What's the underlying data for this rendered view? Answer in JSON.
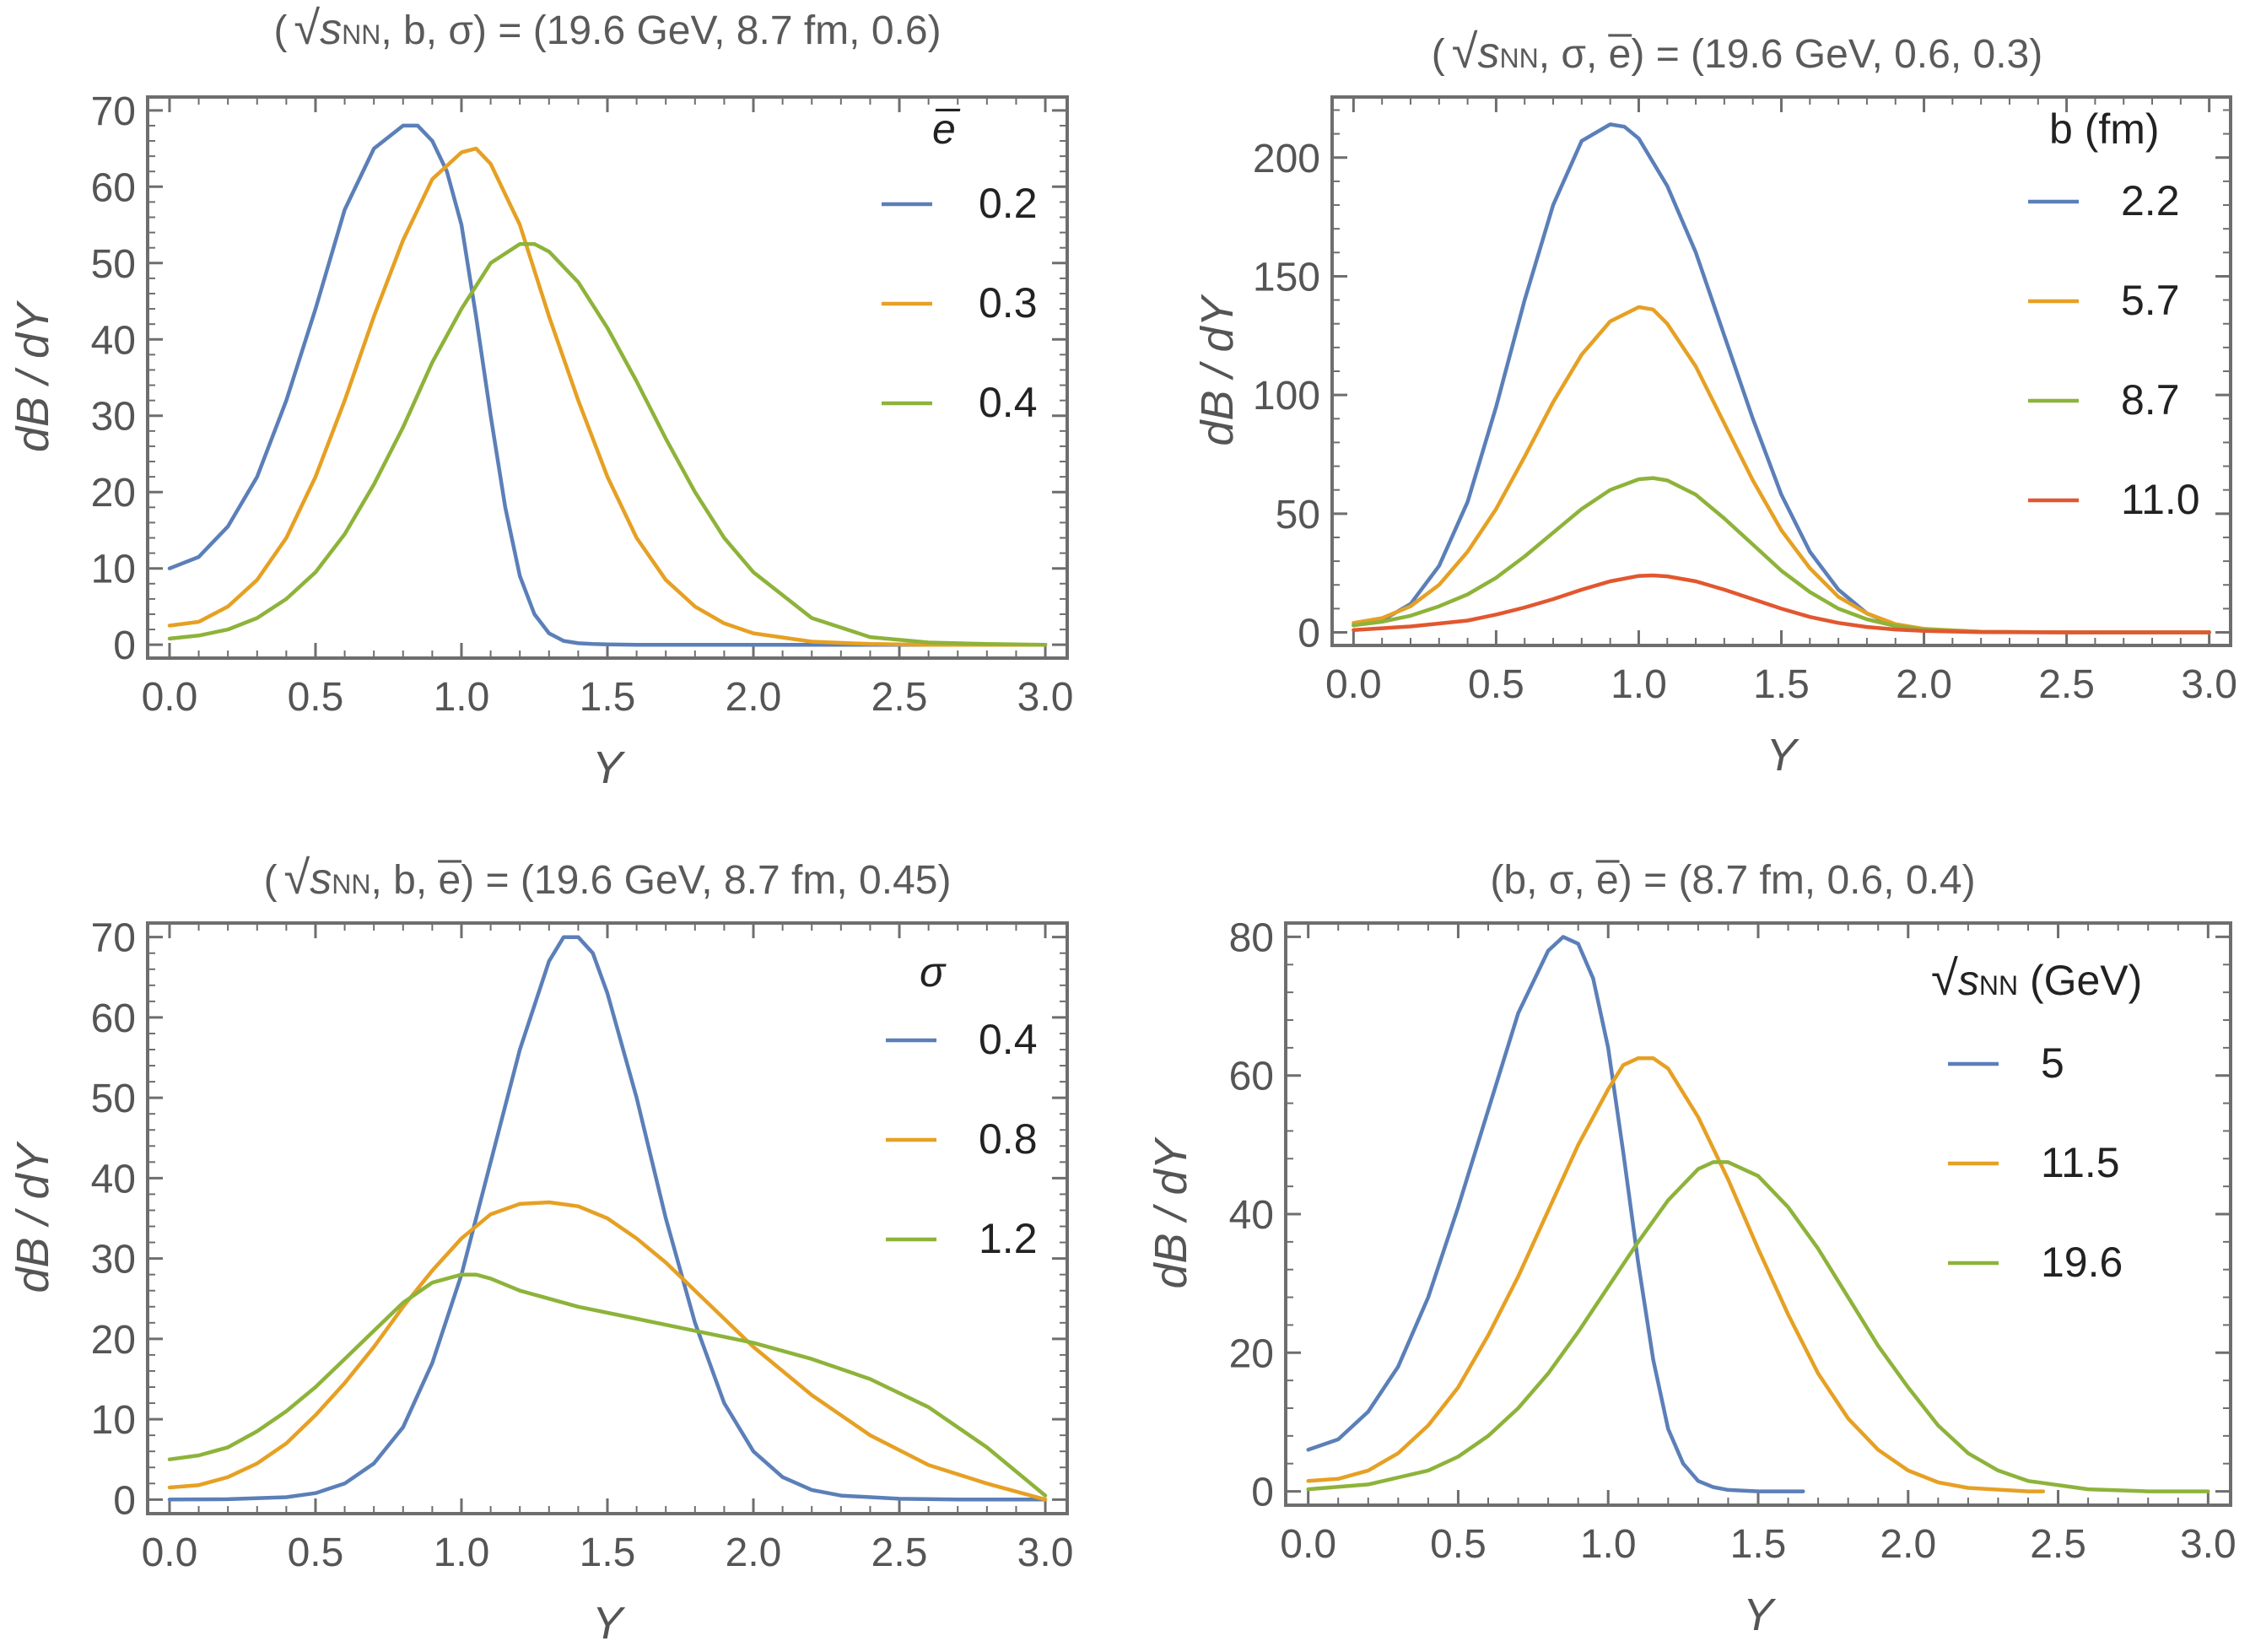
{
  "colors": {
    "blue": "#5B7FB8",
    "orange": "#E6A023",
    "green": "#8DB33A",
    "red": "#E2572F"
  },
  "chart_data": [
    {
      "type": "line",
      "title": "( √sNN , b, σ) = (19.6 GeV, 8.7 fm, 0.6)",
      "title_parts": {
        "open": "(",
        "sqrt": "√",
        "s": "s",
        "sub": "NN",
        "rest": ", b, σ) = (19.6 GeV, 8.7 fm, 0.6)"
      },
      "xlabel": "Y",
      "ylabel": "dB / dY",
      "xlim": [
        0,
        3
      ],
      "ylim": [
        0,
        70
      ],
      "xticks": [
        "0.0",
        "0.5",
        "1.0",
        "1.5",
        "2.0",
        "2.5",
        "3.0"
      ],
      "yticks": [
        "0",
        "10",
        "20",
        "30",
        "40",
        "50",
        "60",
        "70"
      ],
      "legend_title": "e̅",
      "series": [
        {
          "name": "0.2",
          "color": "blue",
          "x": [
            0.0,
            0.1,
            0.2,
            0.3,
            0.4,
            0.5,
            0.6,
            0.7,
            0.8,
            0.85,
            0.9,
            0.95,
            1.0,
            1.05,
            1.1,
            1.15,
            1.2,
            1.25,
            1.3,
            1.35,
            1.4,
            1.45,
            1.5,
            1.6,
            1.8,
            2.0,
            2.5,
            3.0
          ],
          "y": [
            10,
            11.5,
            15.5,
            22,
            32,
            44,
            57,
            65,
            68,
            68,
            66,
            62,
            55,
            43,
            30,
            18,
            9,
            4,
            1.5,
            0.5,
            0.2,
            0.1,
            0.05,
            0,
            0,
            0,
            0,
            0
          ]
        },
        {
          "name": "0.3",
          "color": "orange",
          "x": [
            0.0,
            0.1,
            0.2,
            0.3,
            0.4,
            0.5,
            0.6,
            0.7,
            0.8,
            0.9,
            1.0,
            1.05,
            1.1,
            1.2,
            1.3,
            1.4,
            1.5,
            1.6,
            1.7,
            1.8,
            1.9,
            2.0,
            2.2,
            2.4,
            2.6,
            3.0
          ],
          "y": [
            2.5,
            3,
            5,
            8.5,
            14,
            22,
            32,
            43,
            53,
            61,
            64.5,
            65,
            63,
            55,
            43,
            32,
            22,
            14,
            8.5,
            5,
            2.8,
            1.5,
            0.4,
            0.1,
            0,
            0
          ]
        },
        {
          "name": "0.4",
          "color": "green",
          "x": [
            0.0,
            0.1,
            0.2,
            0.3,
            0.4,
            0.5,
            0.6,
            0.7,
            0.8,
            0.9,
            1.0,
            1.1,
            1.2,
            1.25,
            1.3,
            1.4,
            1.5,
            1.6,
            1.7,
            1.8,
            1.9,
            2.0,
            2.2,
            2.4,
            2.6,
            2.8,
            3.0
          ],
          "y": [
            0.8,
            1.2,
            2,
            3.5,
            6,
            9.5,
            14.5,
            21,
            28.5,
            37,
            44,
            50,
            52.5,
            52.5,
            51.5,
            47.5,
            41.5,
            34.5,
            27,
            20,
            14,
            9.5,
            3.5,
            1,
            0.3,
            0.1,
            0
          ]
        }
      ]
    },
    {
      "type": "line",
      "title": "( √sNN , σ, e̅) = (19.6 GeV, 0.6, 0.3)",
      "title_parts": {
        "open": "(",
        "sqrt": "√",
        "s": "s",
        "sub": "NN",
        "rest": ", σ, e̅) = (19.6 GeV, 0.6, 0.3)"
      },
      "xlabel": "Y",
      "ylabel": "dB / dY",
      "xlim": [
        0,
        3
      ],
      "ylim": [
        0,
        220
      ],
      "xticks": [
        "0.0",
        "0.5",
        "1.0",
        "1.5",
        "2.0",
        "2.5",
        "3.0"
      ],
      "yticks": [
        "0",
        "50",
        "100",
        "150",
        "200"
      ],
      "legend_title": "b (fm)",
      "series": [
        {
          "name": "2.2",
          "color": "blue",
          "x": [
            0.0,
            0.1,
            0.2,
            0.3,
            0.4,
            0.5,
            0.6,
            0.7,
            0.8,
            0.9,
            0.95,
            1.0,
            1.1,
            1.2,
            1.3,
            1.4,
            1.5,
            1.6,
            1.7,
            1.8,
            1.9,
            2.0,
            2.2,
            2.5,
            3.0
          ],
          "y": [
            3,
            5,
            12,
            28,
            55,
            95,
            140,
            180,
            207,
            214,
            213,
            208,
            188,
            160,
            125,
            90,
            58,
            34,
            18,
            8,
            3,
            1,
            0.2,
            0,
            0
          ]
        },
        {
          "name": "5.7",
          "color": "orange",
          "x": [
            0.0,
            0.1,
            0.2,
            0.3,
            0.4,
            0.5,
            0.6,
            0.7,
            0.8,
            0.9,
            1.0,
            1.05,
            1.1,
            1.2,
            1.3,
            1.4,
            1.5,
            1.6,
            1.7,
            1.8,
            1.9,
            2.0,
            2.2,
            2.5,
            3.0
          ],
          "y": [
            4,
            6,
            11,
            20,
            34,
            52,
            74,
            97,
            117,
            131,
            137,
            136,
            130,
            112,
            88,
            64,
            43,
            27,
            15,
            8,
            3.5,
            1.5,
            0.3,
            0,
            0
          ]
        },
        {
          "name": "8.7",
          "color": "green",
          "x": [
            0.0,
            0.1,
            0.2,
            0.3,
            0.4,
            0.5,
            0.6,
            0.7,
            0.8,
            0.9,
            1.0,
            1.05,
            1.1,
            1.2,
            1.3,
            1.4,
            1.5,
            1.6,
            1.7,
            1.8,
            1.9,
            2.0,
            2.2,
            2.5,
            3.0
          ],
          "y": [
            3,
            4.5,
            7,
            11,
            16,
            23,
            32,
            42,
            52,
            60,
            64.5,
            65,
            64,
            58,
            48,
            37,
            26,
            17,
            10,
            5.5,
            2.7,
            1.2,
            0.3,
            0,
            0
          ]
        },
        {
          "name": "11.0",
          "color": "red",
          "x": [
            0.0,
            0.2,
            0.4,
            0.5,
            0.6,
            0.7,
            0.8,
            0.9,
            1.0,
            1.05,
            1.1,
            1.2,
            1.3,
            1.4,
            1.5,
            1.6,
            1.7,
            1.8,
            1.9,
            2.0,
            2.2,
            2.5,
            3.0
          ],
          "y": [
            1,
            2.5,
            5,
            7.5,
            10.5,
            14,
            18,
            21.5,
            23.8,
            24,
            23.6,
            21.5,
            18,
            14,
            10,
            6.5,
            4,
            2.3,
            1.2,
            0.6,
            0.1,
            0,
            0
          ]
        }
      ]
    },
    {
      "type": "line",
      "title": "( √sNN , b, e̅) = (19.6 GeV, 8.7 fm, 0.45)",
      "title_parts": {
        "open": "(",
        "sqrt": "√",
        "s": "s",
        "sub": "NN",
        "rest": ", b, e̅) = (19.6 GeV, 8.7 fm, 0.45)"
      },
      "xlabel": "Y",
      "ylabel": "dB / dY",
      "xlim": [
        0,
        3
      ],
      "ylim": [
        0,
        70
      ],
      "xticks": [
        "0.0",
        "0.5",
        "1.0",
        "1.5",
        "2.0",
        "2.5",
        "3.0"
      ],
      "yticks": [
        "0",
        "10",
        "20",
        "30",
        "40",
        "50",
        "60",
        "70"
      ],
      "legend_title": "σ",
      "series": [
        {
          "name": "0.4",
          "color": "blue",
          "x": [
            0.0,
            0.2,
            0.4,
            0.5,
            0.6,
            0.7,
            0.8,
            0.9,
            1.0,
            1.1,
            1.2,
            1.3,
            1.35,
            1.4,
            1.45,
            1.5,
            1.6,
            1.7,
            1.8,
            1.9,
            2.0,
            2.1,
            2.2,
            2.3,
            2.5,
            2.7,
            3.0
          ],
          "y": [
            0,
            0.05,
            0.3,
            0.8,
            2,
            4.5,
            9,
            17,
            28,
            42,
            56,
            67,
            70,
            70,
            68,
            63,
            50,
            35,
            22,
            12,
            6,
            2.8,
            1.2,
            0.5,
            0.1,
            0,
            0
          ]
        },
        {
          "name": "0.8",
          "color": "orange",
          "x": [
            0.0,
            0.1,
            0.2,
            0.3,
            0.4,
            0.5,
            0.6,
            0.7,
            0.8,
            0.9,
            1.0,
            1.1,
            1.2,
            1.3,
            1.4,
            1.5,
            1.6,
            1.7,
            1.8,
            1.9,
            2.0,
            2.2,
            2.4,
            2.6,
            2.8,
            2.9,
            3.0
          ],
          "y": [
            1.5,
            1.8,
            2.8,
            4.5,
            7,
            10.5,
            14.5,
            19,
            24,
            28.5,
            32.5,
            35.5,
            36.8,
            37,
            36.5,
            35,
            32.5,
            29.5,
            26,
            22.5,
            19,
            13,
            8,
            4.3,
            2,
            1,
            0
          ]
        },
        {
          "name": "1.2",
          "color": "green",
          "x": [
            0.0,
            0.1,
            0.2,
            0.3,
            0.4,
            0.5,
            0.6,
            0.7,
            0.8,
            0.9,
            1.0,
            1.05,
            1.1,
            1.2,
            1.4,
            1.6,
            1.8,
            2.0,
            2.2,
            2.4,
            2.6,
            2.7,
            2.8,
            2.9,
            3.0
          ],
          "y": [
            5,
            5.5,
            6.5,
            8.5,
            11,
            14,
            17.5,
            21,
            24.5,
            27,
            28,
            28,
            27.5,
            26,
            24,
            22.5,
            21,
            19.5,
            17.5,
            15,
            11.5,
            9,
            6.5,
            3.5,
            0.5
          ]
        }
      ]
    },
    {
      "type": "line",
      "title": "(b, σ, e̅) = (8.7 fm, 0.6, 0.4)",
      "xlabel": "Y",
      "ylabel": "dB / dY",
      "xlim": [
        0,
        3
      ],
      "ylim": [
        0,
        80
      ],
      "xticks": [
        "0.0",
        "0.5",
        "1.0",
        "1.5",
        "2.0",
        "2.5",
        "3.0"
      ],
      "yticks": [
        "0",
        "20",
        "40",
        "60",
        "80"
      ],
      "legend_title_parts": {
        "sqrt": "√",
        "s": "s",
        "sub": "NN",
        "rest": " (GeV)"
      },
      "series": [
        {
          "name": "5",
          "color": "blue",
          "x": [
            0.0,
            0.1,
            0.2,
            0.3,
            0.4,
            0.5,
            0.6,
            0.7,
            0.8,
            0.85,
            0.9,
            0.95,
            1.0,
            1.05,
            1.1,
            1.15,
            1.2,
            1.25,
            1.3,
            1.35,
            1.4,
            1.5,
            1.6,
            1.65
          ],
          "y": [
            6,
            7.5,
            11.5,
            18,
            28,
            41,
            55,
            69,
            78,
            80,
            79,
            74,
            64,
            49,
            33,
            19,
            9,
            4,
            1.5,
            0.6,
            0.2,
            0,
            0,
            0
          ]
        },
        {
          "name": "11.5",
          "color": "orange",
          "x": [
            0.0,
            0.1,
            0.2,
            0.3,
            0.4,
            0.5,
            0.6,
            0.7,
            0.8,
            0.9,
            1.0,
            1.05,
            1.1,
            1.15,
            1.2,
            1.3,
            1.4,
            1.5,
            1.6,
            1.7,
            1.8,
            1.9,
            2.0,
            2.1,
            2.2,
            2.4,
            2.45
          ],
          "y": [
            1.5,
            1.8,
            3,
            5.5,
            9.5,
            15,
            22.5,
            31,
            40.5,
            50,
            58,
            61.5,
            62.5,
            62.5,
            61,
            54,
            45,
            35,
            25.5,
            17,
            10.5,
            6,
            3,
            1.3,
            0.5,
            0,
            0
          ]
        },
        {
          "name": "19.6",
          "color": "green",
          "x": [
            0.0,
            0.2,
            0.4,
            0.5,
            0.6,
            0.7,
            0.8,
            0.9,
            1.0,
            1.1,
            1.2,
            1.3,
            1.35,
            1.4,
            1.5,
            1.6,
            1.7,
            1.8,
            1.9,
            2.0,
            2.1,
            2.2,
            2.3,
            2.4,
            2.6,
            2.8,
            3.0
          ],
          "y": [
            0.3,
            1,
            3,
            5,
            8,
            12,
            17,
            23,
            29.5,
            36,
            42,
            46.5,
            47.5,
            47.5,
            45.5,
            41,
            35,
            28,
            21,
            15,
            9.5,
            5.5,
            3,
            1.5,
            0.3,
            0,
            0
          ]
        }
      ]
    }
  ]
}
